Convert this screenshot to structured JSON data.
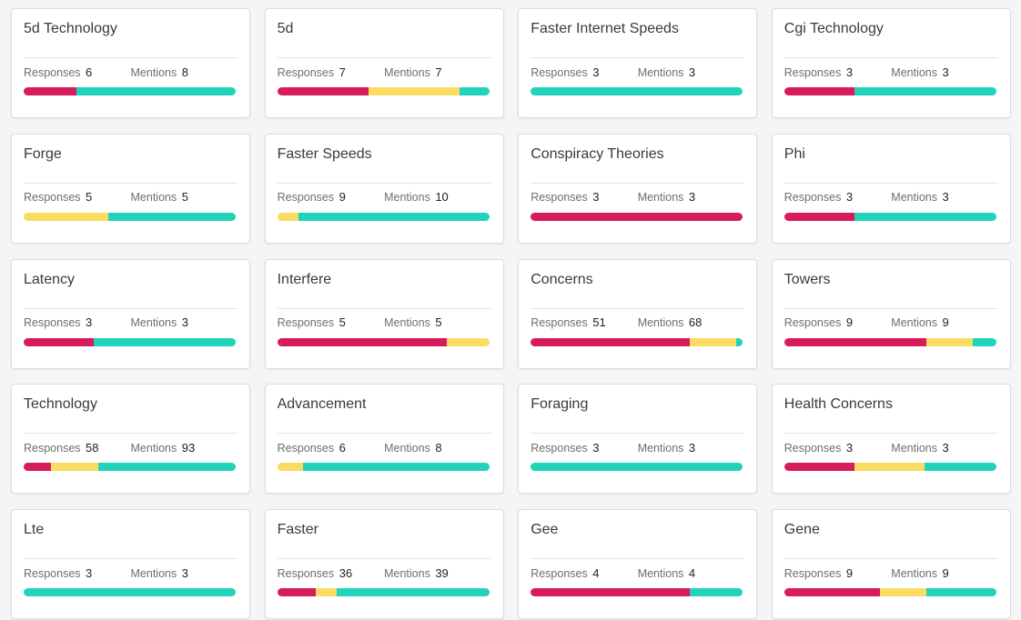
{
  "labels": {
    "responses": "Responses",
    "mentions": "Mentions"
  },
  "colors": {
    "negative": "#d81b5b",
    "neutral": "#fbdc62",
    "positive": "#22d3bb"
  },
  "cards": [
    {
      "title": "5d Technology",
      "responses": 6,
      "mentions": 8,
      "sentiment": [
        0.25,
        0,
        0.75
      ]
    },
    {
      "title": "5d",
      "responses": 7,
      "mentions": 7,
      "sentiment": [
        0.43,
        0.43,
        0.14
      ]
    },
    {
      "title": "Faster Internet Speeds",
      "responses": 3,
      "mentions": 3,
      "sentiment": [
        0,
        0,
        1
      ]
    },
    {
      "title": "Cgi Technology",
      "responses": 3,
      "mentions": 3,
      "sentiment": [
        0.33,
        0,
        0.67
      ]
    },
    {
      "title": "Forge",
      "responses": 5,
      "mentions": 5,
      "sentiment": [
        0,
        0.4,
        0.6
      ]
    },
    {
      "title": "Faster Speeds",
      "responses": 9,
      "mentions": 10,
      "sentiment": [
        0,
        0.1,
        0.9
      ]
    },
    {
      "title": "Conspiracy Theories",
      "responses": 3,
      "mentions": 3,
      "sentiment": [
        1,
        0,
        0
      ]
    },
    {
      "title": "Phi",
      "responses": 3,
      "mentions": 3,
      "sentiment": [
        0.33,
        0,
        0.67
      ]
    },
    {
      "title": "Latency",
      "responses": 3,
      "mentions": 3,
      "sentiment": [
        0.33,
        0,
        0.67
      ]
    },
    {
      "title": "Interfere",
      "responses": 5,
      "mentions": 5,
      "sentiment": [
        0.8,
        0.2,
        0
      ]
    },
    {
      "title": "Concerns",
      "responses": 51,
      "mentions": 68,
      "sentiment": [
        0.75,
        0.22,
        0.03
      ]
    },
    {
      "title": "Towers",
      "responses": 9,
      "mentions": 9,
      "sentiment": [
        0.67,
        0.22,
        0.11
      ]
    },
    {
      "title": "Technology",
      "responses": 58,
      "mentions": 93,
      "sentiment": [
        0.13,
        0.22,
        0.65
      ]
    },
    {
      "title": "Advancement",
      "responses": 6,
      "mentions": 8,
      "sentiment": [
        0,
        0.12,
        0.88
      ]
    },
    {
      "title": "Foraging",
      "responses": 3,
      "mentions": 3,
      "sentiment": [
        0,
        0,
        1
      ]
    },
    {
      "title": "Health Concerns",
      "responses": 3,
      "mentions": 3,
      "sentiment": [
        0.33,
        0.33,
        0.34
      ]
    },
    {
      "title": "Lte",
      "responses": 3,
      "mentions": 3,
      "sentiment": [
        0,
        0,
        1
      ]
    },
    {
      "title": "Faster",
      "responses": 36,
      "mentions": 39,
      "sentiment": [
        0.18,
        0.1,
        0.72
      ]
    },
    {
      "title": "Gee",
      "responses": 4,
      "mentions": 4,
      "sentiment": [
        0.75,
        0,
        0.25
      ]
    },
    {
      "title": "Gene",
      "responses": 9,
      "mentions": 9,
      "sentiment": [
        0.45,
        0.22,
        0.33
      ]
    }
  ]
}
